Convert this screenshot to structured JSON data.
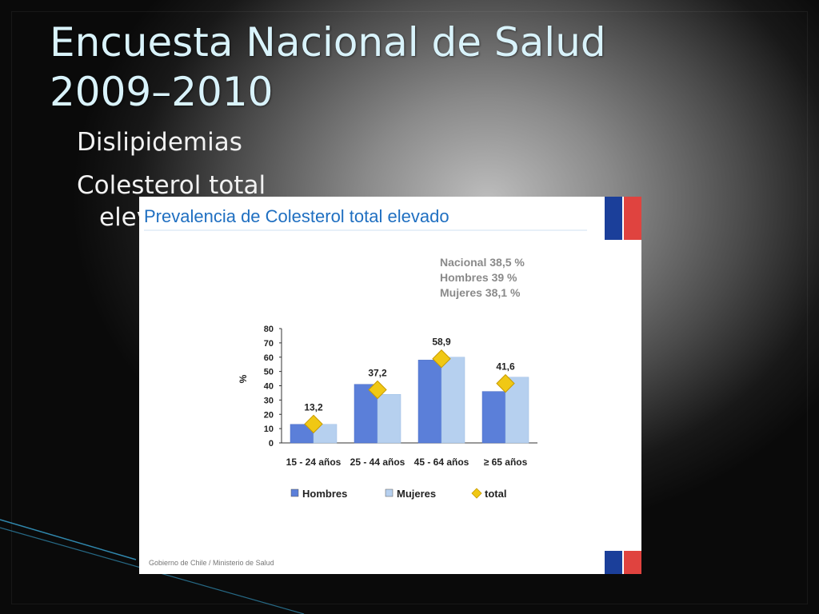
{
  "slide": {
    "title_line1": "Encuesta Nacional de Salud",
    "title_line2": "2009–2010",
    "bullets": [
      "Dislipidemias",
      "Colesterol total",
      "elevado"
    ]
  },
  "chart_data": {
    "type": "bar",
    "title": "Prevalencia de Colesterol total elevado",
    "summary": [
      "Nacional 38,5  %",
      "Hombres 39  %",
      "Mujeres 38,1  %"
    ],
    "categories": [
      "15 - 24 años",
      "25 - 44 años",
      "45 - 64 años",
      "≥ 65 años"
    ],
    "series": [
      {
        "name": "Hombres",
        "values": [
          13,
          41,
          58,
          36
        ],
        "color": "#5b7fd9"
      },
      {
        "name": "Mujeres",
        "values": [
          13,
          34,
          60,
          46
        ],
        "color": "#b6d0ef"
      }
    ],
    "total": {
      "name": "total",
      "values": [
        13.2,
        37.2,
        58.9,
        41.6
      ],
      "labels": [
        "13,2",
        "37,2",
        "58,9",
        "41,6"
      ],
      "color": "#f0c814"
    },
    "ylabel": "%",
    "ylim": [
      0,
      80
    ],
    "yticks": [
      0,
      10,
      20,
      30,
      40,
      50,
      60,
      70,
      80
    ],
    "legend_position": "bottom",
    "footer": "Gobierno de Chile / Ministerio de Salud"
  },
  "colors": {
    "title": "#d9f3fb",
    "chart_title": "#1f6fc1",
    "summary_text": "#8a8a8a",
    "flag_blue": "#1b3f9a",
    "flag_red": "#e0433f"
  }
}
